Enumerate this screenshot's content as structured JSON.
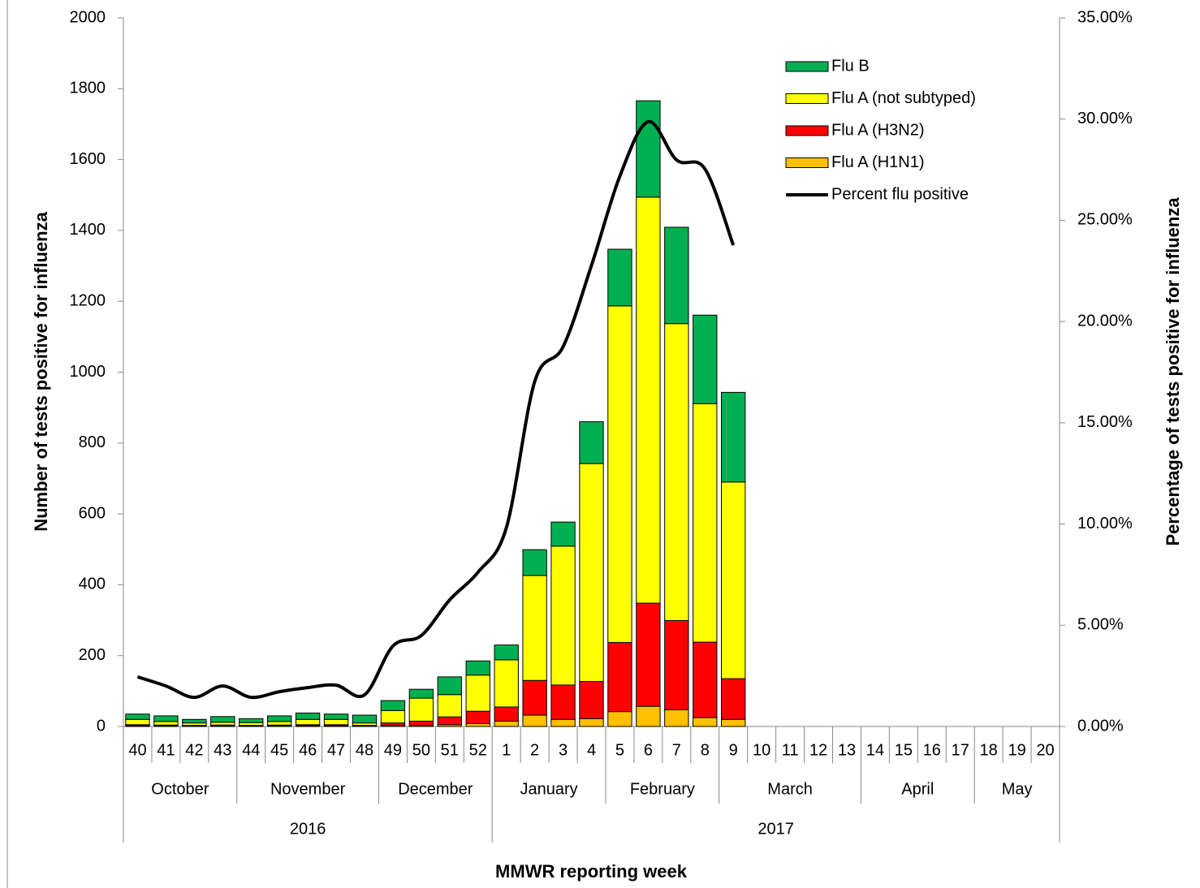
{
  "chart_data": {
    "type": "bar",
    "x_label": "MMWR reporting week",
    "y_label": "Number of tests positive for influenza",
    "y2_label": "Percentage  of  tests  positive for influenza",
    "categories": [
      "40",
      "41",
      "42",
      "43",
      "44",
      "45",
      "46",
      "47",
      "48",
      "49",
      "50",
      "51",
      "52",
      "1",
      "2",
      "3",
      "4",
      "5",
      "6",
      "7",
      "8",
      "9",
      "10",
      "11",
      "12",
      "13",
      "14",
      "15",
      "16",
      "17",
      "18",
      "19",
      "20"
    ],
    "month_groups": [
      {
        "label": "October",
        "span": 4
      },
      {
        "label": "November",
        "span": 5
      },
      {
        "label": "December",
        "span": 4
      },
      {
        "label": "January",
        "span": 4
      },
      {
        "label": "February",
        "span": 4
      },
      {
        "label": "March",
        "span": 5
      },
      {
        "label": "April",
        "span": 4
      },
      {
        "label": "May",
        "span": 3
      }
    ],
    "year_groups": [
      {
        "label": "2016",
        "span": 13
      },
      {
        "label": "2017",
        "span": 20
      }
    ],
    "stacked": true,
    "legend": "top-right",
    "grid": false,
    "ylim": [
      0,
      2000
    ],
    "yticks": [
      0,
      200,
      400,
      600,
      800,
      1000,
      1200,
      1400,
      1600,
      1800,
      2000
    ],
    "y2lim": [
      0,
      35
    ],
    "y2ticks": [
      {
        "value": 0,
        "label": "0.00%"
      },
      {
        "value": 5,
        "label": "5.00%"
      },
      {
        "value": 10,
        "label": "10.00%"
      },
      {
        "value": 15,
        "label": "15.00%"
      },
      {
        "value": 20,
        "label": "20.00%"
      },
      {
        "value": 25,
        "label": "25.00%"
      },
      {
        "value": 30,
        "label": "30.00%"
      },
      {
        "value": 35,
        "label": "35.00%"
      }
    ],
    "series": [
      {
        "name": "Flu A (H1N1)",
        "color": "#ffc000",
        "values": [
          2,
          2,
          1,
          2,
          1,
          2,
          2,
          2,
          1,
          3,
          3,
          5,
          8,
          15,
          32,
          20,
          22,
          42,
          57,
          47,
          25,
          20,
          null,
          null,
          null,
          null,
          null,
          null,
          null,
          null,
          null,
          null,
          null
        ]
      },
      {
        "name": "Flu A (H3N2)",
        "color": "#ff0000",
        "values": [
          3,
          2,
          2,
          2,
          2,
          2,
          3,
          3,
          2,
          7,
          12,
          22,
          35,
          40,
          98,
          97,
          105,
          195,
          291,
          252,
          213,
          115,
          null,
          null,
          null,
          null,
          null,
          null,
          null,
          null,
          null,
          null,
          null
        ]
      },
      {
        "name": "Flu A (not subtyped)",
        "color": "#ffff00",
        "values": [
          15,
          10,
          7,
          8,
          8,
          10,
          15,
          15,
          7,
          35,
          65,
          63,
          102,
          133,
          296,
          392,
          615,
          950,
          1146,
          838,
          673,
          555,
          null,
          null,
          null,
          null,
          null,
          null,
          null,
          null,
          null,
          null,
          null
        ]
      },
      {
        "name": "Flu B",
        "color": "#00b050",
        "values": [
          15,
          16,
          10,
          16,
          11,
          16,
          18,
          15,
          22,
          28,
          25,
          50,
          40,
          42,
          73,
          68,
          118,
          160,
          272,
          272,
          250,
          253,
          null,
          null,
          null,
          null,
          null,
          null,
          null,
          null,
          null,
          null,
          null
        ]
      },
      {
        "name": "Percent flu positive",
        "type": "line",
        "axis": "y2",
        "color": "#000000",
        "values": [
          2.45,
          2.0,
          1.44,
          2.0,
          1.44,
          1.72,
          1.92,
          2.04,
          1.56,
          3.97,
          4.49,
          6.25,
          7.62,
          9.82,
          17.04,
          18.76,
          22.77,
          27.18,
          29.87,
          27.98,
          27.54,
          23.77,
          null,
          null,
          null,
          null,
          null,
          null,
          null,
          null,
          null,
          null,
          null
        ]
      }
    ]
  }
}
